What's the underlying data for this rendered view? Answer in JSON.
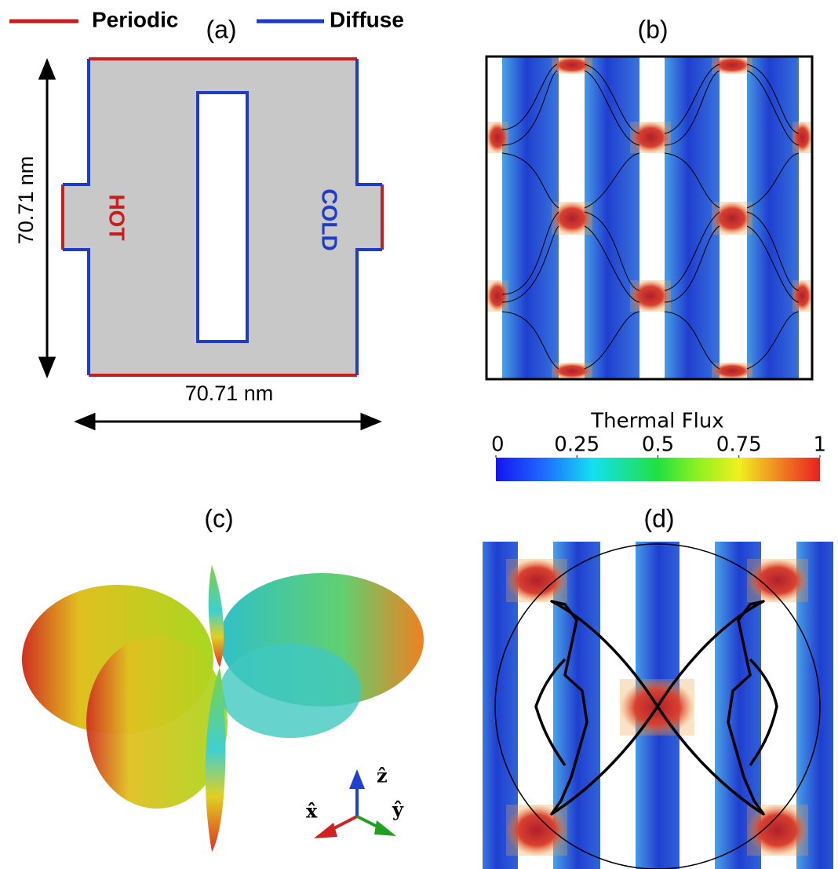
{
  "legend": {
    "periodic": "Periodic",
    "diffuse": "Diffuse"
  },
  "panels": {
    "a": "(a)",
    "b": "(b)",
    "c": "(c)",
    "d": "(d)"
  },
  "panel_a": {
    "hot": "HOT",
    "cold": "COLD",
    "height": "70.71 nm",
    "width": "70.71 nm"
  },
  "colorbar": {
    "label": "Thermal Flux",
    "range": [
      0,
      1
    ],
    "ticks": [
      0,
      0.25,
      0.5,
      0.75,
      1
    ]
  },
  "axes": {
    "x": "x̂",
    "y": "ŷ",
    "z": "ẑ"
  }
}
